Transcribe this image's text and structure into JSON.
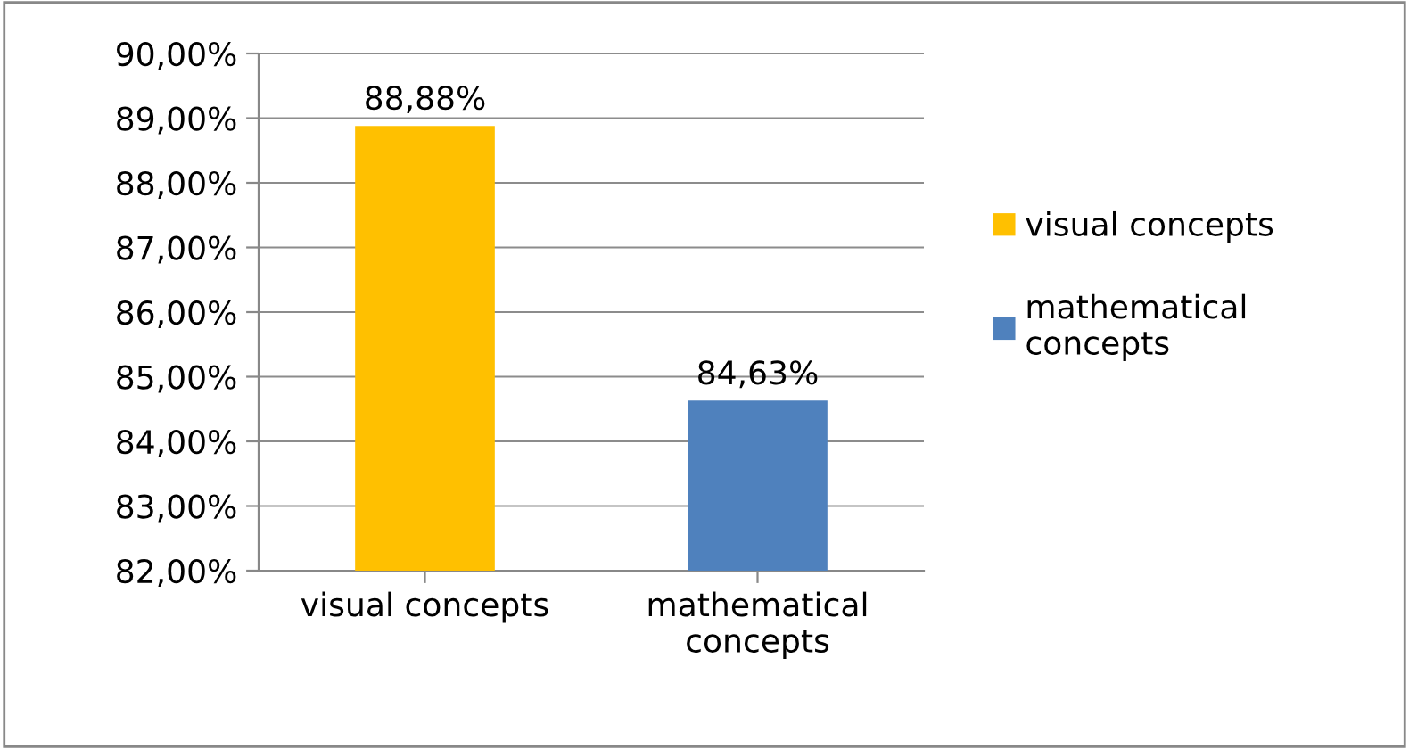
{
  "chart_data": {
    "type": "bar",
    "categories": [
      "visual concepts",
      "mathematical concepts"
    ],
    "series": [
      {
        "name": "visual concepts",
        "color": "#ffc000",
        "values": [
          88.88,
          null
        ],
        "value_labels": [
          "88,88%",
          null
        ]
      },
      {
        "name": "mathematical concepts",
        "color": "#4f81bd",
        "values": [
          null,
          84.63
        ],
        "value_labels": [
          null,
          "84,63%"
        ]
      }
    ],
    "ylim": [
      82,
      90
    ],
    "yticks": [
      {
        "value": 82,
        "label": "82,00%"
      },
      {
        "value": 83,
        "label": "83,00%"
      },
      {
        "value": 84,
        "label": "84,00%"
      },
      {
        "value": 85,
        "label": "85,00%"
      },
      {
        "value": 86,
        "label": "86,00%"
      },
      {
        "value": 87,
        "label": "87,00%"
      },
      {
        "value": 88,
        "label": "88,00%"
      },
      {
        "value": 89,
        "label": "89,00%"
      },
      {
        "value": 90,
        "label": "90,00%"
      }
    ],
    "grid": "y",
    "legend": "right"
  }
}
